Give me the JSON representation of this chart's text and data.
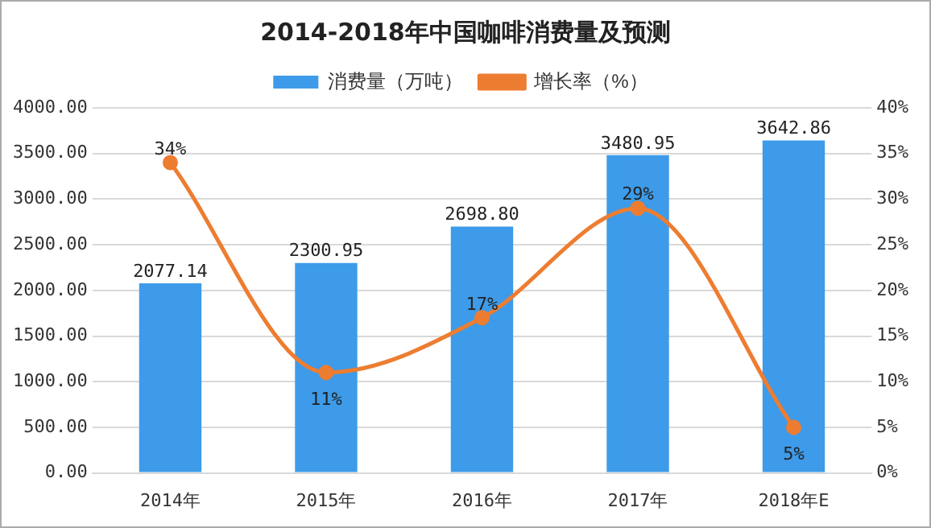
{
  "chart_data": {
    "type": "bar",
    "title": "2014-2018年中国咖啡消费量及预测",
    "categories": [
      "2014年",
      "2015年",
      "2016年",
      "2017年",
      "2018年E"
    ],
    "series": [
      {
        "name": "消费量（万吨）",
        "color": "#3d9be9",
        "values": [
          2077.14,
          2300.95,
          2698.8,
          3480.95,
          3642.86
        ],
        "value_labels": [
          "2077.14",
          "2300.95",
          "2698.80",
          "3480.95",
          "3642.86"
        ]
      },
      {
        "name": "增长率（%）",
        "type": "line",
        "axis": "y2",
        "color": "#ed7d31",
        "values": [
          34,
          11,
          17,
          29,
          5
        ],
        "value_labels": [
          "34%",
          "11%",
          "17%",
          "29%",
          "5%"
        ]
      }
    ],
    "ylim": [
      0,
      4000
    ],
    "yticks": [
      {
        "value": 0,
        "label": "0.00"
      },
      {
        "value": 500,
        "label": "500.00"
      },
      {
        "value": 1000,
        "label": "1000.00"
      },
      {
        "value": 1500,
        "label": "1500.00"
      },
      {
        "value": 2000,
        "label": "2000.00"
      },
      {
        "value": 2500,
        "label": "2500.00"
      },
      {
        "value": 3000,
        "label": "3000.00"
      },
      {
        "value": 3500,
        "label": "3500.00"
      },
      {
        "value": 4000,
        "label": "4000.00"
      }
    ],
    "y2lim": [
      0,
      40
    ],
    "y2ticks": [
      {
        "value": 0,
        "label": "0%"
      },
      {
        "value": 5,
        "label": "5%"
      },
      {
        "value": 10,
        "label": "10%"
      },
      {
        "value": 15,
        "label": "15%"
      },
      {
        "value": 20,
        "label": "20%"
      },
      {
        "value": 25,
        "label": "25%"
      },
      {
        "value": 30,
        "label": "30%"
      },
      {
        "value": 35,
        "label": "35%"
      },
      {
        "value": 40,
        "label": "40%"
      }
    ],
    "grid": "y",
    "legend": "top",
    "marker": "circle",
    "line_style": "solid"
  }
}
